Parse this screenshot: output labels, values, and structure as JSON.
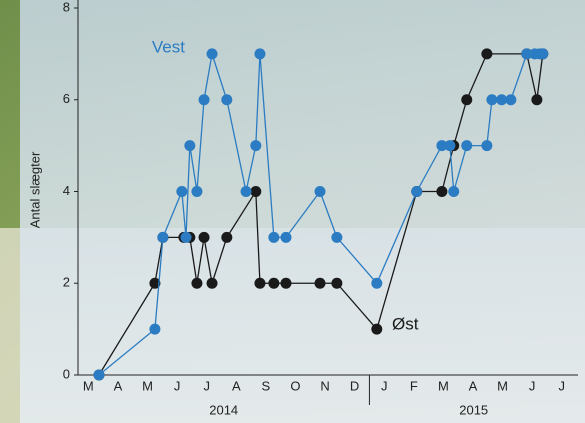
{
  "chart_data": {
    "type": "line",
    "y_label": "Antal slægter",
    "xlim": [
      0.15,
      17.05
    ],
    "ylim": [
      0,
      8
    ],
    "yticks": [
      0,
      2,
      4,
      6,
      8
    ],
    "xticks": [
      {
        "value": 0.5,
        "label": "M"
      },
      {
        "value": 1.5,
        "label": "A"
      },
      {
        "value": 2.5,
        "label": "M"
      },
      {
        "value": 3.5,
        "label": "J"
      },
      {
        "value": 4.5,
        "label": "J"
      },
      {
        "value": 5.5,
        "label": "A"
      },
      {
        "value": 6.5,
        "label": "S"
      },
      {
        "value": 7.5,
        "label": "O"
      },
      {
        "value": 8.5,
        "label": "N"
      },
      {
        "value": 9.5,
        "label": "D"
      },
      {
        "value": 10.5,
        "label": "J"
      },
      {
        "value": 11.5,
        "label": "F"
      },
      {
        "value": 12.5,
        "label": "M"
      },
      {
        "value": 13.5,
        "label": "A"
      },
      {
        "value": 14.5,
        "label": "M"
      },
      {
        "value": 15.5,
        "label": "J"
      },
      {
        "value": 16.5,
        "label": "J"
      }
    ],
    "years": [
      "2014",
      "2015"
    ],
    "series": [
      {
        "name": "Vest",
        "color": "#2b7cc2",
        "x": [
          0.86,
          2.75,
          3.02,
          3.66,
          3.8,
          3.93,
          4.17,
          4.41,
          4.68,
          5.18,
          5.83,
          6.16,
          6.3,
          6.77,
          7.18,
          8.33,
          8.9,
          10.25,
          11.6,
          12.45,
          12.72,
          12.85,
          13.29,
          13.97,
          14.14,
          14.47,
          14.78,
          15.32,
          15.59,
          15.76,
          15.86
        ],
        "values": [
          0,
          1,
          3,
          4,
          3,
          5,
          4,
          6,
          7,
          6,
          4,
          5,
          7,
          3,
          3,
          4,
          3,
          2,
          4,
          5,
          5,
          4,
          5,
          5,
          6,
          6,
          6,
          7,
          7,
          7,
          7
        ]
      },
      {
        "name": "Øst",
        "color": "#1a1a1a",
        "x": [
          0.86,
          2.75,
          3.02,
          3.73,
          3.93,
          4.17,
          4.41,
          4.68,
          5.18,
          6.16,
          6.3,
          6.77,
          7.18,
          8.33,
          8.9,
          10.25,
          11.6,
          12.45,
          12.85,
          13.29,
          13.97,
          15.32,
          15.66,
          15.86
        ],
        "values": [
          0,
          2,
          3,
          3,
          3,
          2,
          3,
          2,
          3,
          4,
          2,
          2,
          2,
          2,
          2,
          1,
          4,
          4,
          5,
          6,
          7,
          7,
          6,
          7
        ]
      }
    ]
  }
}
